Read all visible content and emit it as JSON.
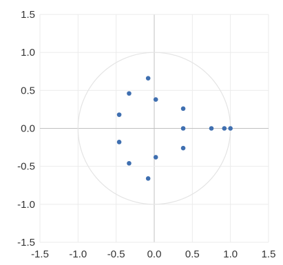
{
  "chart_data": {
    "type": "scatter",
    "title": "",
    "xlabel": "",
    "ylabel": "",
    "xlim": [
      -1.5,
      1.5
    ],
    "ylim": [
      -1.5,
      1.5
    ],
    "x_ticks": [
      "-1.5",
      "-1.0",
      "-0.5",
      "0.0",
      "0.5",
      "1.0",
      "1.5"
    ],
    "y_ticks": [
      "1.5",
      "1.0",
      "0.5",
      "0.0",
      "-0.5",
      "-1.0",
      "-1.5"
    ],
    "grid": true,
    "reference_circle_radius": 1,
    "marker_color": "#3f6fb0",
    "circle_color": "#e4e4e4",
    "series": [
      {
        "points": [
          {
            "x": -0.08,
            "y": 0.66
          },
          {
            "x": -0.33,
            "y": 0.46
          },
          {
            "x": 0.02,
            "y": 0.38
          },
          {
            "x": 0.38,
            "y": 0.26
          },
          {
            "x": -0.46,
            "y": 0.18
          },
          {
            "x": 0.38,
            "y": 0.0
          },
          {
            "x": 0.75,
            "y": 0.0
          },
          {
            "x": 0.92,
            "y": 0.0
          },
          {
            "x": 1.0,
            "y": 0.0
          },
          {
            "x": -0.46,
            "y": -0.18
          },
          {
            "x": 0.38,
            "y": -0.26
          },
          {
            "x": 0.02,
            "y": -0.38
          },
          {
            "x": -0.33,
            "y": -0.46
          },
          {
            "x": -0.08,
            "y": -0.66
          }
        ]
      }
    ]
  }
}
